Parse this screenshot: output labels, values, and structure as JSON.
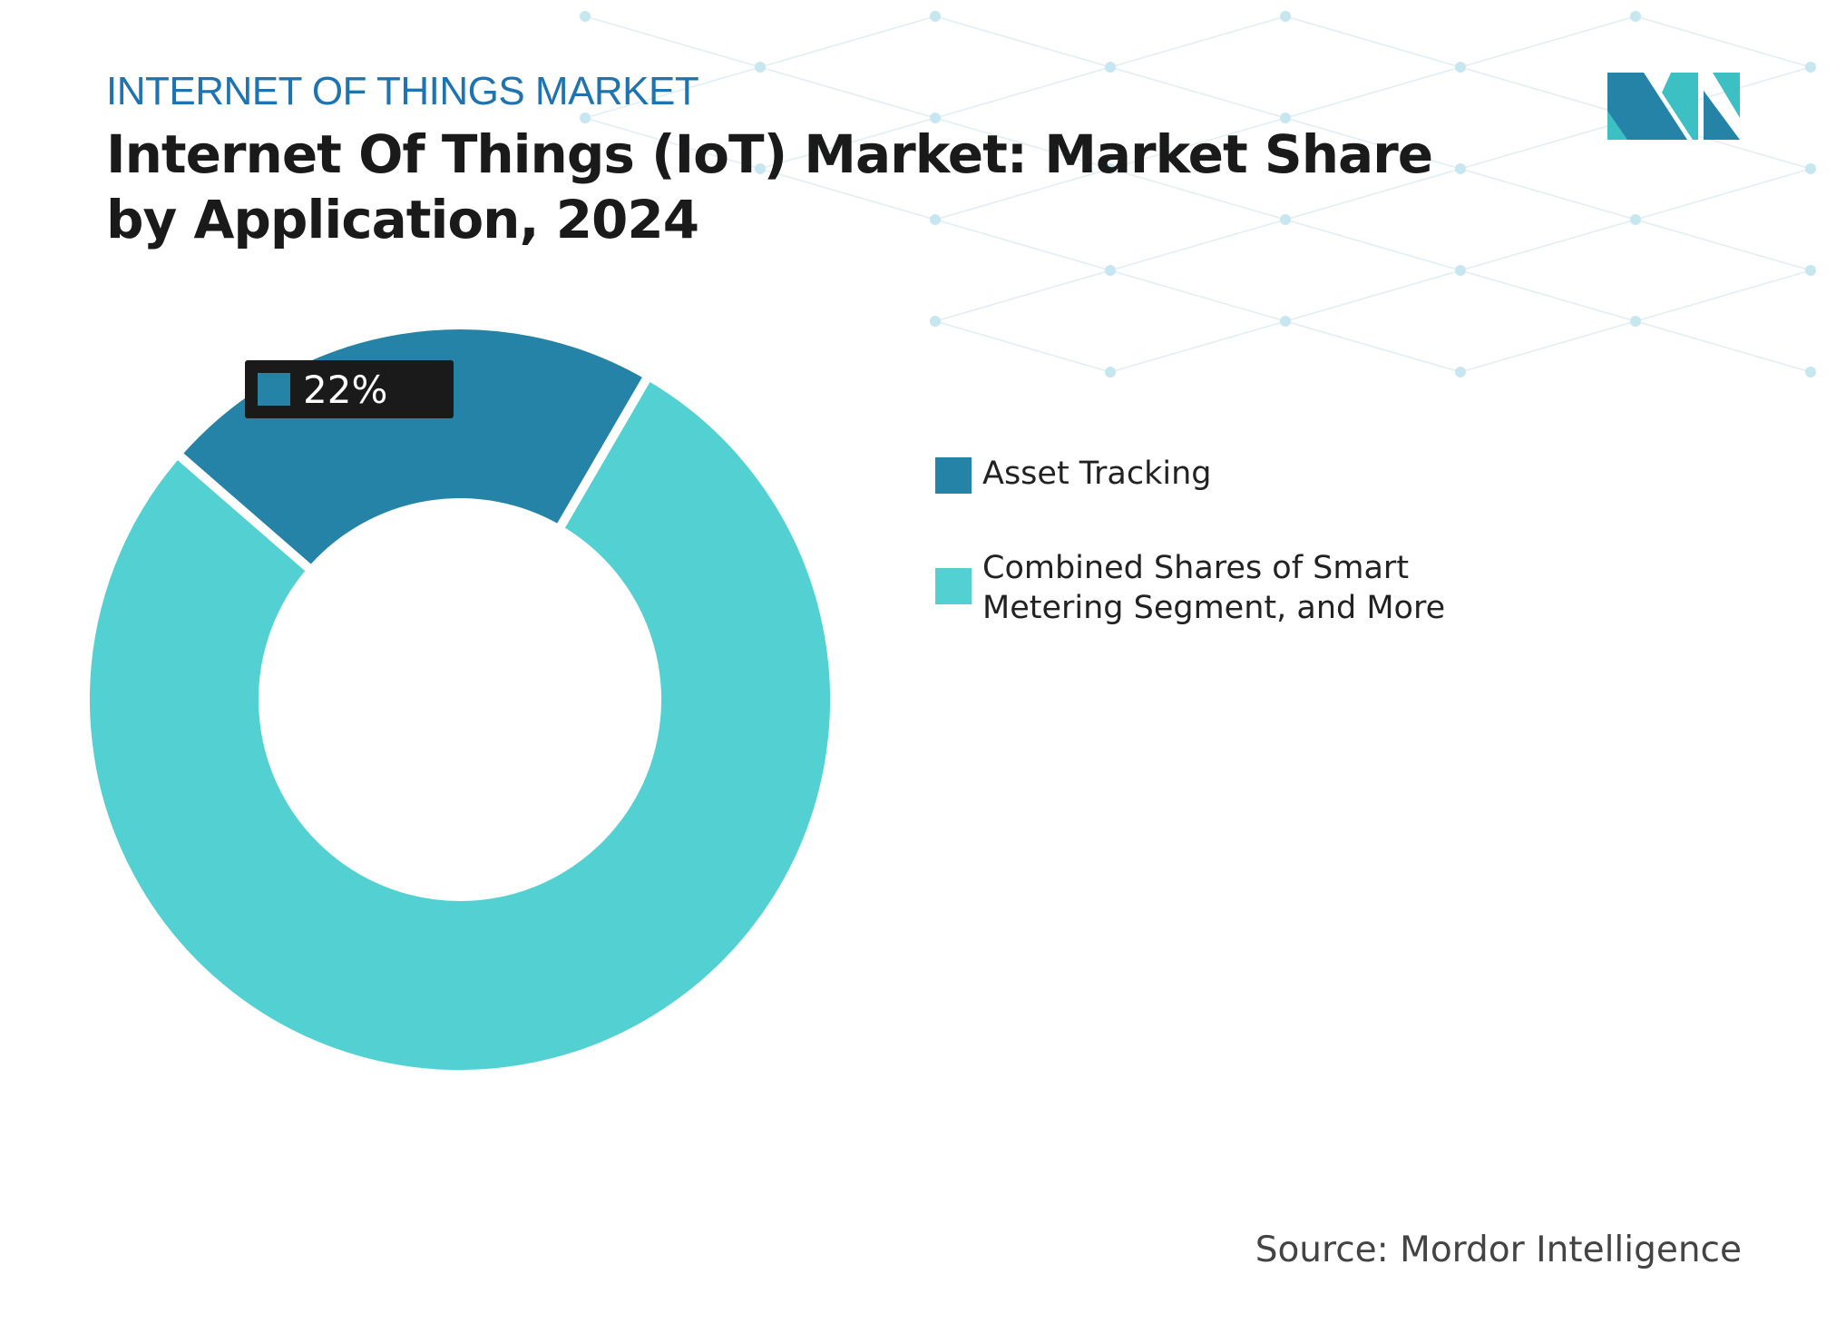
{
  "header": {
    "kicker": "INTERNET OF THINGS MARKET",
    "title": "Internet Of Things (IoT) Market: Market Share by Application, 2024"
  },
  "source": "Source: Mordor Intelligence",
  "logo": {
    "text": "MI"
  },
  "colors": {
    "asset_tracking": "#2683a8",
    "combined": "#53d0d2",
    "kicker": "#1d74b0"
  },
  "chart_data": {
    "type": "donut",
    "title": "Internet Of Things (IoT) Market: Market Share by Application, 2024",
    "categories": [
      "Asset Tracking",
      "Combined Shares of Smart Metering Segment, and More"
    ],
    "values": [
      22,
      78
    ],
    "colors": [
      "#2683a8",
      "#53d0d2"
    ],
    "data_labels": [
      {
        "category": "Asset Tracking",
        "text": "22%"
      }
    ],
    "legend_position": "right"
  }
}
